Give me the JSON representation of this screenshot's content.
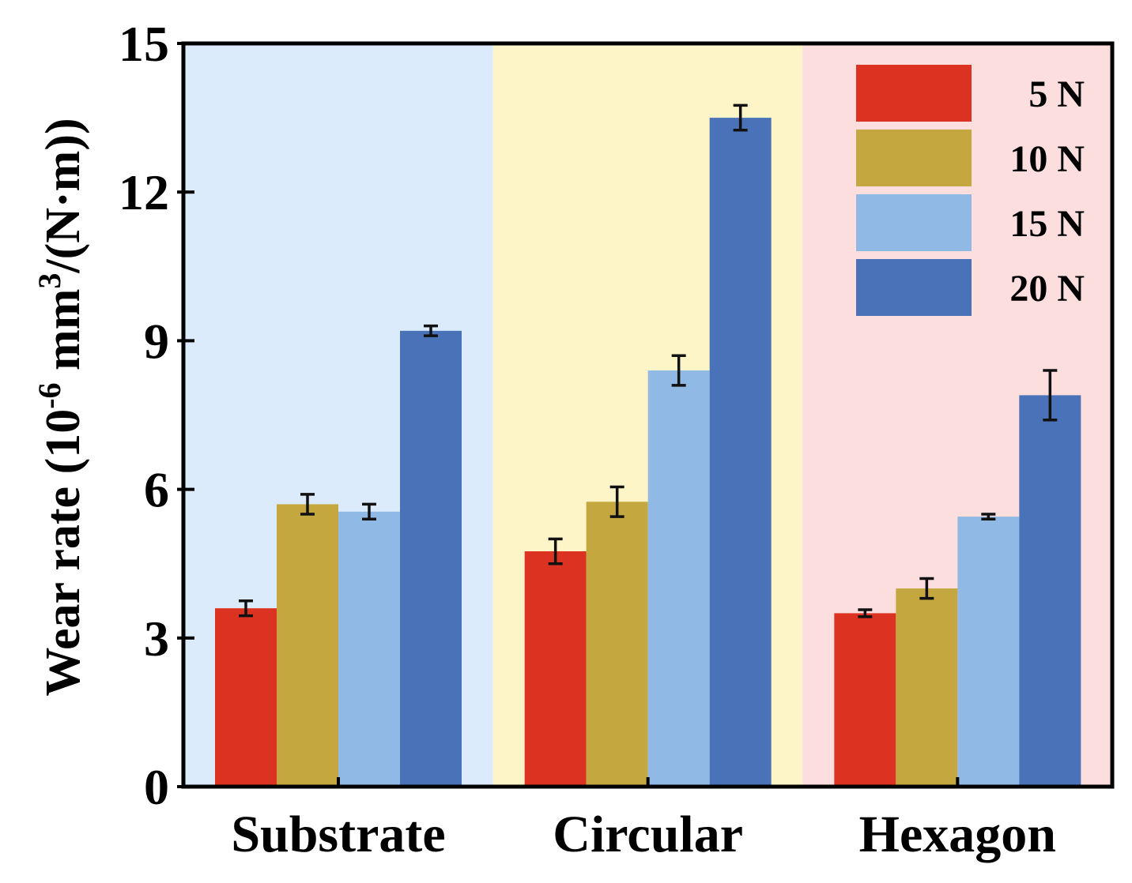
{
  "chart_data": {
    "type": "bar",
    "title": "",
    "xlabel": "",
    "ylabel": {
      "prefix": "Wear rate (10",
      "exp1": "-6",
      "middle": " mm",
      "exp2": "3",
      "suffix": "/(N·m))"
    },
    "ylim": [
      0,
      15
    ],
    "yticks": [
      "0",
      "3",
      "6",
      "9",
      "12",
      "15"
    ],
    "categories": [
      "Substrate",
      "Circular",
      "Hexagon"
    ],
    "band_colors": [
      "#dbebfc",
      "#fdf5c8",
      "#fcdede"
    ],
    "series": [
      {
        "name": "5 N",
        "color": "#dc3222",
        "values": [
          3.6,
          4.75,
          3.5
        ],
        "errors": [
          0.15,
          0.25,
          0.07
        ]
      },
      {
        "name": "10 N",
        "color": "#c4a73f",
        "values": [
          5.7,
          5.75,
          4.0
        ],
        "errors": [
          0.2,
          0.3,
          0.2
        ]
      },
      {
        "name": "15 N",
        "color": "#90bae5",
        "values": [
          5.55,
          8.4,
          5.45
        ],
        "errors": [
          0.15,
          0.3,
          0.05
        ]
      },
      {
        "name": "20 N",
        "color": "#4a72b8",
        "values": [
          9.2,
          13.5,
          7.9
        ],
        "errors": [
          0.1,
          0.25,
          0.5
        ]
      }
    ]
  }
}
